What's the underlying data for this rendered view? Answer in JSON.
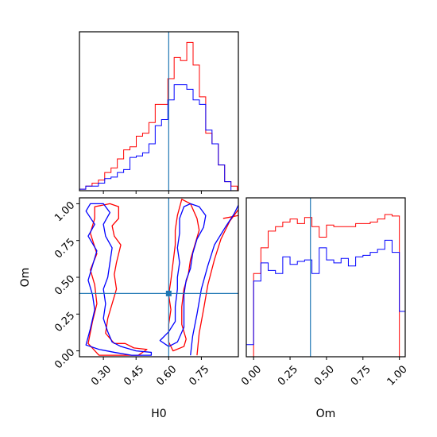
{
  "chart_data": {
    "type": "corner",
    "parameters": [
      "H0",
      "Om"
    ],
    "truth": {
      "H0": 0.6,
      "Om": 0.39
    },
    "truth_color": "#1f77b4",
    "series": [
      {
        "color": "#ff0000"
      },
      {
        "color": "#0000ff"
      }
    ],
    "panels": [
      {
        "id": "hist-H0",
        "type": "histogram",
        "parameter": "H0",
        "xlim": [
          0.19,
          0.92
        ],
        "ylim": [
          0,
          1.05
        ],
        "xticks": [
          0.3,
          0.45,
          0.6,
          0.75
        ],
        "bin_edges": [
          0.19,
          0.219,
          0.248,
          0.277,
          0.306,
          0.335,
          0.364,
          0.393,
          0.422,
          0.451,
          0.48,
          0.509,
          0.538,
          0.567,
          0.596,
          0.625,
          0.654,
          0.683,
          0.712,
          0.741,
          0.77,
          0.799,
          0.828,
          0.857,
          0.886,
          0.915
        ],
        "series": [
          {
            "color": "#ff0000",
            "values": [
              0.01,
              0.03,
              0.05,
              0.07,
              0.12,
              0.15,
              0.21,
              0.27,
              0.29,
              0.36,
              0.38,
              0.45,
              0.57,
              0.57,
              0.74,
              0.88,
              0.86,
              0.98,
              0.83,
              0.62,
              0.38,
              0.31,
              0.17,
              0.06,
              0.03
            ]
          },
          {
            "color": "#0000ff",
            "values": [
              0.01,
              0.03,
              0.03,
              0.05,
              0.08,
              0.09,
              0.12,
              0.14,
              0.22,
              0.23,
              0.25,
              0.31,
              0.43,
              0.47,
              0.6,
              0.7,
              0.7,
              0.67,
              0.6,
              0.57,
              0.4,
              0.31,
              0.17,
              0.06,
              0.0
            ]
          }
        ]
      },
      {
        "id": "contour-H0-Om",
        "type": "contour",
        "xparam": "H0",
        "yparam": "Om",
        "xlim": [
          0.19,
          0.92
        ],
        "ylim": [
          -0.04,
          1.04
        ],
        "xticks": [
          0.3,
          0.45,
          0.6,
          0.75
        ],
        "yticks": [
          0.0,
          0.25,
          0.5,
          0.75,
          1.0
        ],
        "xtick_labels": [
          "0.30",
          "0.45",
          "0.60",
          "0.75"
        ],
        "ytick_labels": [
          "0.00",
          "0.25",
          "0.50",
          "0.75",
          "1.00"
        ],
        "contours": [
          {
            "color": "#ff0000",
            "closed": true,
            "points": [
              [
                0.26,
                0.98
              ],
              [
                0.33,
                1.0
              ],
              [
                0.37,
                0.98
              ],
              [
                0.37,
                0.9
              ],
              [
                0.34,
                0.85
              ],
              [
                0.35,
                0.78
              ],
              [
                0.38,
                0.72
              ],
              [
                0.36,
                0.6
              ],
              [
                0.35,
                0.52
              ],
              [
                0.36,
                0.42
              ],
              [
                0.34,
                0.32
              ],
              [
                0.32,
                0.22
              ],
              [
                0.31,
                0.12
              ],
              [
                0.35,
                0.05
              ],
              [
                0.4,
                0.05
              ],
              [
                0.44,
                0.02
              ],
              [
                0.5,
                0.01
              ],
              [
                0.46,
                -0.03
              ],
              [
                0.28,
                -0.03
              ],
              [
                0.23,
                0.05
              ],
              [
                0.25,
                0.2
              ],
              [
                0.27,
                0.32
              ],
              [
                0.26,
                0.45
              ],
              [
                0.24,
                0.55
              ],
              [
                0.27,
                0.66
              ],
              [
                0.24,
                0.8
              ],
              [
                0.26,
                0.9
              ]
            ]
          },
          {
            "color": "#ff0000",
            "closed": true,
            "points": [
              [
                0.66,
                1.03
              ],
              [
                0.7,
                1.0
              ],
              [
                0.73,
                0.9
              ],
              [
                0.74,
                0.82
              ],
              [
                0.72,
                0.72
              ],
              [
                0.7,
                0.62
              ],
              [
                0.69,
                0.52
              ],
              [
                0.67,
                0.42
              ],
              [
                0.66,
                0.3
              ],
              [
                0.66,
                0.18
              ],
              [
                0.68,
                0.08
              ],
              [
                0.67,
                0.03
              ],
              [
                0.62,
                0.0
              ],
              [
                0.6,
                0.06
              ],
              [
                0.6,
                0.18
              ],
              [
                0.61,
                0.28
              ],
              [
                0.6,
                0.38
              ],
              [
                0.61,
                0.48
              ],
              [
                0.62,
                0.6
              ],
              [
                0.63,
                0.72
              ],
              [
                0.63,
                0.82
              ],
              [
                0.64,
                0.92
              ]
            ]
          },
          {
            "color": "#ff0000",
            "closed": false,
            "points": [
              [
                0.73,
                -0.03
              ],
              [
                0.74,
                0.12
              ],
              [
                0.76,
                0.28
              ],
              [
                0.78,
                0.45
              ],
              [
                0.81,
                0.62
              ],
              [
                0.84,
                0.76
              ],
              [
                0.88,
                0.88
              ],
              [
                0.92,
                0.96
              ]
            ]
          },
          {
            "color": "#ff0000",
            "closed": false,
            "points": [
              [
                0.85,
                0.9
              ],
              [
                0.92,
                0.92
              ]
            ]
          },
          {
            "color": "#0000ff",
            "closed": true,
            "points": [
              [
                0.24,
                1.0
              ],
              [
                0.3,
                1.0
              ],
              [
                0.33,
                0.94
              ],
              [
                0.3,
                0.86
              ],
              [
                0.31,
                0.78
              ],
              [
                0.34,
                0.7
              ],
              [
                0.33,
                0.6
              ],
              [
                0.32,
                0.5
              ],
              [
                0.3,
                0.42
              ],
              [
                0.31,
                0.32
              ],
              [
                0.3,
                0.22
              ],
              [
                0.32,
                0.13
              ],
              [
                0.34,
                0.06
              ],
              [
                0.38,
                0.03
              ],
              [
                0.45,
                0.0
              ],
              [
                0.52,
                -0.01
              ],
              [
                0.52,
                -0.03
              ],
              [
                0.43,
                -0.03
              ],
              [
                0.35,
                -0.01
              ],
              [
                0.28,
                0.01
              ],
              [
                0.22,
                0.04
              ],
              [
                0.24,
                0.15
              ],
              [
                0.26,
                0.28
              ],
              [
                0.25,
                0.38
              ],
              [
                0.23,
                0.48
              ],
              [
                0.25,
                0.58
              ],
              [
                0.27,
                0.68
              ],
              [
                0.23,
                0.78
              ],
              [
                0.26,
                0.86
              ],
              [
                0.22,
                0.95
              ]
            ]
          },
          {
            "color": "#0000ff",
            "closed": true,
            "points": [
              [
                0.7,
                1.0
              ],
              [
                0.74,
                0.98
              ],
              [
                0.77,
                0.92
              ],
              [
                0.76,
                0.84
              ],
              [
                0.73,
                0.76
              ],
              [
                0.71,
                0.66
              ],
              [
                0.7,
                0.56
              ],
              [
                0.68,
                0.48
              ],
              [
                0.67,
                0.38
              ],
              [
                0.67,
                0.26
              ],
              [
                0.67,
                0.16
              ],
              [
                0.64,
                0.06
              ],
              [
                0.6,
                0.03
              ],
              [
                0.56,
                0.07
              ],
              [
                0.6,
                0.13
              ],
              [
                0.63,
                0.2
              ],
              [
                0.63,
                0.3
              ],
              [
                0.64,
                0.42
              ],
              [
                0.64,
                0.5
              ],
              [
                0.65,
                0.6
              ],
              [
                0.64,
                0.7
              ],
              [
                0.65,
                0.8
              ],
              [
                0.65,
                0.9
              ],
              [
                0.67,
                0.98
              ]
            ]
          },
          {
            "color": "#0000ff",
            "closed": false,
            "points": [
              [
                0.7,
                -0.03
              ],
              [
                0.71,
                0.1
              ],
              [
                0.73,
                0.25
              ],
              [
                0.75,
                0.42
              ],
              [
                0.78,
                0.58
              ],
              [
                0.81,
                0.72
              ],
              [
                0.86,
                0.84
              ],
              [
                0.9,
                0.93
              ],
              [
                0.92,
                0.99
              ]
            ]
          }
        ]
      },
      {
        "id": "hist-Om",
        "type": "histogram",
        "parameter": "Om",
        "xlim": [
          -0.05,
          1.04
        ],
        "ylim": [
          0,
          1.05
        ],
        "xticks": [
          0.0,
          0.25,
          0.5,
          0.75,
          1.0
        ],
        "xtick_labels": [
          "0.00",
          "0.25",
          "0.50",
          "0.75",
          "1.00"
        ],
        "bin_edges": [
          -0.05,
          0.0,
          0.05,
          0.1,
          0.15,
          0.2,
          0.25,
          0.3,
          0.35,
          0.4,
          0.45,
          0.5,
          0.55,
          0.6,
          0.65,
          0.7,
          0.75,
          0.8,
          0.85,
          0.9,
          0.95,
          1.0,
          1.04
        ],
        "series": [
          {
            "color": "#ff0000",
            "values": [
              0.0,
              0.55,
              0.72,
              0.83,
              0.86,
              0.89,
              0.91,
              0.88,
              0.92,
              0.86,
              0.79,
              0.87,
              0.86,
              0.86,
              0.86,
              0.88,
              0.88,
              0.89,
              0.91,
              0.94,
              0.93,
              0.0
            ]
          },
          {
            "color": "#0000ff",
            "values": [
              0.08,
              0.5,
              0.62,
              0.57,
              0.55,
              0.66,
              0.61,
              0.63,
              0.64,
              0.55,
              0.72,
              0.64,
              0.62,
              0.65,
              0.6,
              0.66,
              0.67,
              0.69,
              0.71,
              0.77,
              0.69,
              0.3
            ]
          }
        ]
      }
    ]
  }
}
